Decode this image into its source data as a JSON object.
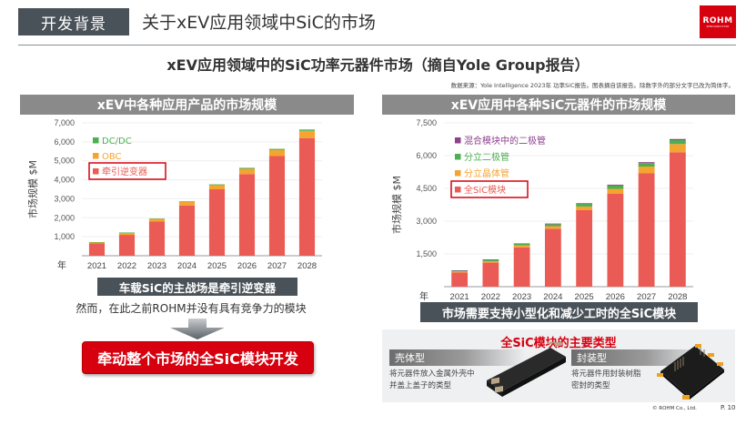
{
  "header": {
    "section_tag": "开发背景",
    "title": "关于xEV应用领域中SiC的市场",
    "logo_text": "ROHM",
    "logo_subtext": "SEMICONDUCTOR"
  },
  "subtitle": "xEV应用领域中的SiC功率元器件市场（摘自Yole Group报告）",
  "source_note": "数据来源：Yole Intelligence 2023年 功率SiC报告。图表摘自该报告。除数字外的部分文字已改为简体字。",
  "left_panel": {
    "heading": "xEV中各种应用产品的市场规模",
    "highlight": "车载SiC的主战场是牵引逆变器",
    "note": "然而，在此之前ROHM并没有具有竞争力的模块",
    "cta": "牵动整个市场的全SiC模块开发"
  },
  "right_panel": {
    "heading": "xEV应用中各种SiC元器件的市场规模",
    "highlight": "市场需要支持小型化和减少工时的全SiC模块",
    "types": {
      "title": "全SiC模块的主要类型",
      "case_type": {
        "label": "壳体型",
        "desc_line1": "将元器件放入金属外壳中",
        "desc_line2": "并盖上盖子的类型"
      },
      "molded_type": {
        "label": "封装型",
        "desc_line1": "将元器件用封装树脂",
        "desc_line2": "密封的类型"
      }
    }
  },
  "footer": {
    "copyright": "© ROHM Co., Ltd.",
    "page": "P. 10"
  },
  "colors": {
    "brand_red": "#d7000f",
    "bar_red": "#eb5b55",
    "bar_orange": "#f5a430",
    "bar_green": "#4caf50",
    "bar_purple": "#8e3f8e",
    "dark_box": "#4a5259",
    "panel_head": "#8a8a8a"
  },
  "chart_data": [
    {
      "type": "bar",
      "stacked": true,
      "title": "xEV中各种应用产品的市场规模",
      "xlabel": "年",
      "ylabel": "市场规模 $M",
      "ylim": [
        0,
        7000
      ],
      "yticks": [
        "1,000",
        "2,000",
        "3,000",
        "4,000",
        "5,000",
        "6,000",
        "7,000"
      ],
      "categories": [
        "2021",
        "2022",
        "2023",
        "2024",
        "2025",
        "2026",
        "2027",
        "2028"
      ],
      "legend_position": "upper-left",
      "series": [
        {
          "name": "牵引逆变器",
          "color": "#eb5b55",
          "values": [
            650,
            1100,
            1800,
            2650,
            3500,
            4300,
            5250,
            6200
          ]
        },
        {
          "name": "OBC",
          "color": "#f5a430",
          "values": [
            60,
            110,
            140,
            190,
            220,
            280,
            320,
            380
          ]
        },
        {
          "name": "DC/DC",
          "color": "#4caf50",
          "values": [
            10,
            15,
            20,
            30,
            40,
            50,
            60,
            70
          ]
        }
      ],
      "legend": [
        "DC/DC",
        "OBC",
        "牵引逆变器"
      ],
      "grid": true
    },
    {
      "type": "bar",
      "stacked": true,
      "title": "xEV应用中各种SiC元器件的市场规模",
      "xlabel": "年",
      "ylabel": "市场规模 $M",
      "ylim": [
        0,
        7500
      ],
      "yticks": [
        "1,500",
        "3,000",
        "4,500",
        "6,000",
        "7,500"
      ],
      "categories": [
        "2021",
        "2022",
        "2023",
        "2024",
        "2025",
        "2026",
        "2027",
        "2028"
      ],
      "legend_position": "upper-left",
      "series": [
        {
          "name": "全SiC模块",
          "color": "#eb5b55",
          "values": [
            650,
            1100,
            1800,
            2650,
            3500,
            4250,
            5200,
            6150
          ]
        },
        {
          "name": "分立晶体管",
          "color": "#f5a430",
          "values": [
            50,
            70,
            90,
            120,
            170,
            230,
            300,
            380
          ]
        },
        {
          "name": "分立二极管",
          "color": "#4caf50",
          "values": [
            40,
            60,
            70,
            90,
            120,
            150,
            160,
            180
          ]
        },
        {
          "name": "混合模块中的二极管",
          "color": "#8e3f8e",
          "values": [
            10,
            20,
            20,
            30,
            30,
            40,
            40,
            50
          ]
        }
      ],
      "legend": [
        "混合模块中的二极管",
        "分立二极管",
        "分立晶体管",
        "全SiC模块"
      ],
      "grid": true
    }
  ]
}
